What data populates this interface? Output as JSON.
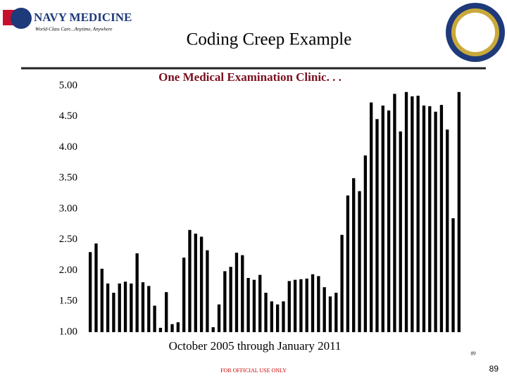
{
  "slide": {
    "title": "Coding Creep Example",
    "logo_text": "NAVY MEDICINE",
    "logo_tagline": "World-Class Care...Anytime, Anywhere",
    "footer": "FOR OFFICIAL USE ONLY",
    "page_small": "89",
    "page_number": "89"
  },
  "chart_data": {
    "type": "bar",
    "title": "One Medical  Examination Clinic. . .",
    "x_label": "October 2005 through January 2011",
    "color": "#000000",
    "categories": [
      null,
      null,
      null,
      null,
      null,
      null,
      null,
      null,
      null,
      null,
      null,
      null,
      null,
      null,
      null,
      null,
      null,
      null,
      null,
      null,
      null,
      null,
      null,
      null,
      null,
      null,
      null,
      null,
      null,
      null,
      null,
      null,
      null,
      null,
      null,
      null,
      null,
      null,
      null,
      null,
      null,
      null,
      null,
      null,
      null,
      null,
      null,
      null,
      null,
      null,
      null,
      null,
      null,
      null,
      null,
      null,
      null,
      null,
      null,
      null,
      null,
      null,
      null,
      null
    ],
    "values": [
      2.3,
      2.44,
      2.03,
      1.79,
      1.64,
      1.79,
      1.82,
      1.79,
      2.28,
      1.81,
      1.75,
      1.43,
      1.07,
      1.65,
      1.13,
      1.16,
      2.21,
      2.66,
      2.6,
      2.55,
      2.33,
      1.08,
      1.45,
      1.99,
      2.06,
      2.29,
      2.25,
      1.88,
      1.85,
      1.93,
      1.64,
      1.5,
      1.45,
      1.5,
      1.83,
      1.85,
      1.86,
      1.87,
      1.94,
      1.91,
      1.73,
      1.58,
      1.64,
      2.58,
      3.22,
      3.5,
      3.29,
      3.87,
      4.73,
      4.46,
      4.68,
      4.6,
      4.87,
      4.26,
      4.9,
      4.83,
      4.84,
      4.68,
      4.67,
      4.58,
      4.69,
      4.29,
      2.85,
      4.9
    ],
    "ylim": [
      1,
      5
    ],
    "yticks": [
      {
        "value": 1,
        "label": "1.00"
      },
      {
        "value": 1.5,
        "label": "1.50"
      },
      {
        "value": 2,
        "label": "2.00"
      },
      {
        "value": 2.5,
        "label": "2.50"
      },
      {
        "value": 3,
        "label": "3.00"
      },
      {
        "value": 3.5,
        "label": "3.50"
      },
      {
        "value": 4,
        "label": "4.00"
      },
      {
        "value": 4.5,
        "label": "4.50"
      },
      {
        "value": 5,
        "label": "5.00"
      }
    ],
    "grid": false
  }
}
